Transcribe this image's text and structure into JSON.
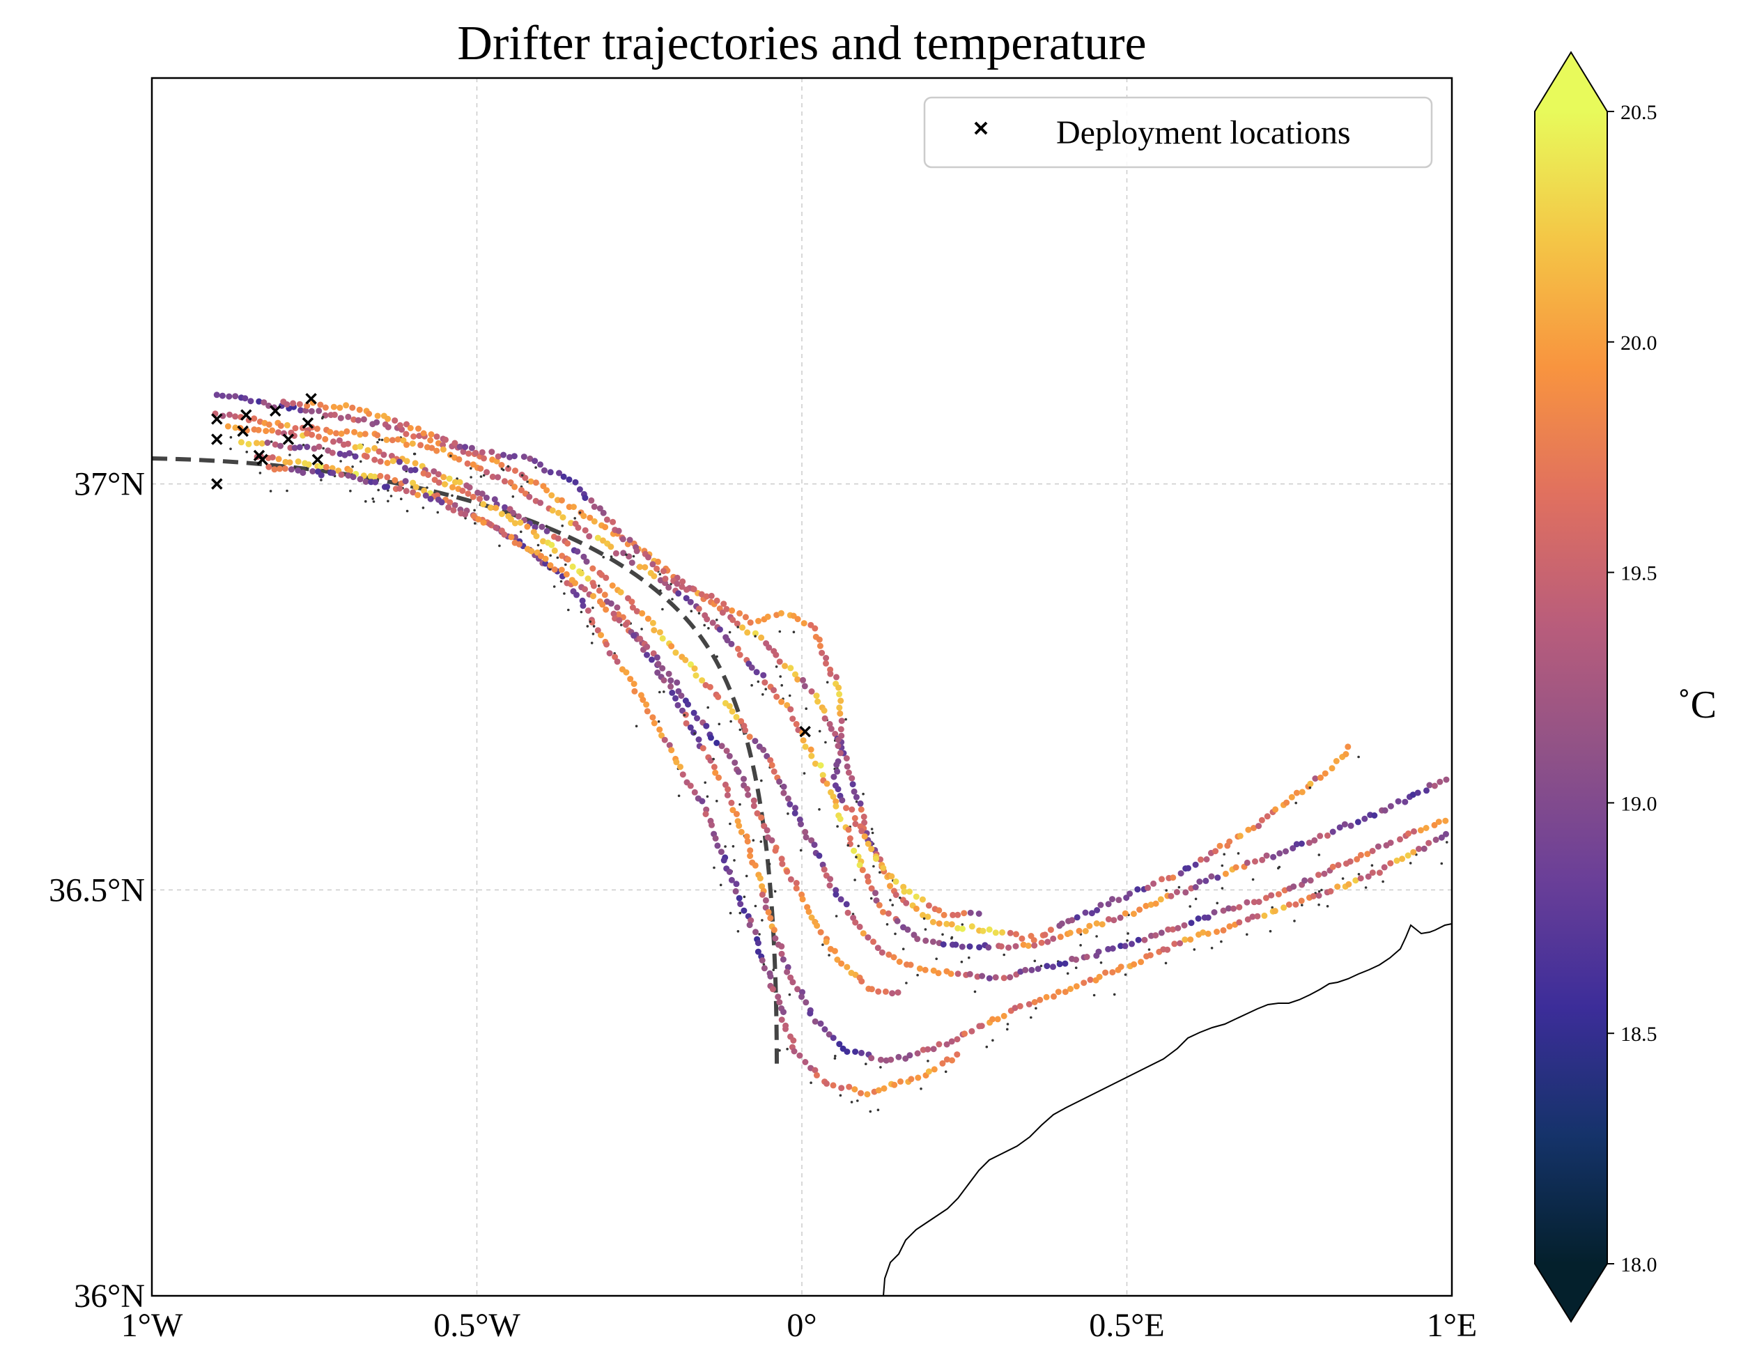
{
  "chart_data": {
    "type": "scatter",
    "title": "Drifter trajectories and temperature",
    "xlim": [
      -1.0,
      1.0
    ],
    "ylim": [
      36.0,
      37.5
    ],
    "x_ticks": [
      {
        "value": -1.0,
        "label": "1°W"
      },
      {
        "value": -0.5,
        "label": "0.5°W"
      },
      {
        "value": 0.0,
        "label": "0°"
      },
      {
        "value": 0.5,
        "label": "0.5°E"
      },
      {
        "value": 1.0,
        "label": "1°E"
      }
    ],
    "y_ticks": [
      {
        "value": 36.0,
        "label": "36°N"
      },
      {
        "value": 36.5,
        "label": "36.5°N"
      },
      {
        "value": 37.0,
        "label": "37°N"
      }
    ],
    "grid": true,
    "legend": {
      "placement": "top-right",
      "entries": [
        {
          "marker": "x",
          "label": "Deployment locations"
        }
      ]
    },
    "colorbar": {
      "label": "˚C",
      "min": 18.0,
      "max": 20.5,
      "ticks": [
        "18.0",
        "18.5",
        "19.0",
        "19.5",
        "20.0",
        "20.5"
      ],
      "colormap": "thermal",
      "extend": "both",
      "colors": [
        "#04202c",
        "#15336a",
        "#3c2d99",
        "#6a3f98",
        "#905287",
        "#b95d7b",
        "#e0705f",
        "#f8943f",
        "#f4c646",
        "#e8fa5b"
      ]
    },
    "deployment_locations": [
      [
        -0.9,
        37.08
      ],
      [
        -0.9,
        37.055
      ],
      [
        -0.9,
        37.0
      ],
      [
        -0.86,
        37.065
      ],
      [
        -0.855,
        37.085
      ],
      [
        -0.81,
        37.09
      ],
      [
        -0.79,
        37.055
      ],
      [
        -0.835,
        37.035
      ],
      [
        -0.83,
        37.03
      ],
      [
        -0.76,
        37.075
      ],
      [
        -0.755,
        37.105
      ],
      [
        -0.745,
        37.03
      ],
      [
        0.005,
        36.695
      ]
    ],
    "trajectory_waypoints": [
      [
        [
          -0.9,
          37.11
        ],
        [
          -0.8,
          37.095
        ],
        [
          -0.68,
          37.08
        ],
        [
          -0.55,
          37.05
        ],
        [
          -0.45,
          37.02
        ],
        [
          -0.35,
          36.97
        ],
        [
          -0.25,
          36.92
        ],
        [
          -0.15,
          36.86
        ],
        [
          -0.05,
          36.8
        ],
        [
          0.02,
          36.74
        ],
        [
          0.07,
          36.66
        ],
        [
          0.1,
          36.57
        ],
        [
          0.14,
          36.5
        ],
        [
          0.2,
          36.46
        ],
        [
          0.28,
          36.45
        ],
        [
          0.36,
          36.44
        ],
        [
          0.46,
          36.48
        ],
        [
          0.58,
          36.52
        ],
        [
          0.7,
          36.58
        ],
        [
          0.8,
          36.64
        ],
        [
          0.85,
          36.68
        ]
      ],
      [
        [
          -0.9,
          37.085
        ],
        [
          -0.78,
          37.07
        ],
        [
          -0.66,
          37.06
        ],
        [
          -0.55,
          37.04
        ],
        [
          -0.45,
          37.0
        ],
        [
          -0.35,
          36.95
        ],
        [
          -0.25,
          36.9
        ],
        [
          -0.15,
          36.84
        ],
        [
          -0.08,
          36.78
        ],
        [
          -0.02,
          36.72
        ],
        [
          0.04,
          36.63
        ],
        [
          0.08,
          36.55
        ],
        [
          0.12,
          36.48
        ],
        [
          0.18,
          36.44
        ],
        [
          0.26,
          36.43
        ],
        [
          0.36,
          36.43
        ],
        [
          0.5,
          36.47
        ],
        [
          0.65,
          36.52
        ],
        [
          0.78,
          36.56
        ],
        [
          0.9,
          36.6
        ],
        [
          1.0,
          36.64
        ]
      ],
      [
        [
          -0.88,
          37.07
        ],
        [
          -0.76,
          37.06
        ],
        [
          -0.65,
          37.04
        ],
        [
          -0.55,
          37.01
        ],
        [
          -0.45,
          36.97
        ],
        [
          -0.35,
          36.92
        ],
        [
          -0.27,
          36.86
        ],
        [
          -0.2,
          36.8
        ],
        [
          -0.12,
          36.73
        ],
        [
          -0.05,
          36.66
        ],
        [
          0.0,
          36.58
        ],
        [
          0.05,
          36.5
        ],
        [
          0.1,
          36.44
        ],
        [
          0.15,
          36.41
        ],
        [
          0.2,
          36.4
        ],
        [
          0.3,
          36.39
        ],
        [
          0.45,
          36.42
        ],
        [
          0.6,
          36.46
        ],
        [
          0.75,
          36.5
        ],
        [
          0.88,
          36.55
        ],
        [
          1.0,
          36.59
        ]
      ],
      [
        [
          -0.86,
          37.05
        ],
        [
          -0.75,
          37.045
        ],
        [
          -0.62,
          37.025
        ],
        [
          -0.52,
          36.99
        ],
        [
          -0.43,
          36.95
        ],
        [
          -0.35,
          36.9
        ],
        [
          -0.28,
          36.84
        ],
        [
          -0.22,
          36.77
        ],
        [
          -0.17,
          36.7
        ],
        [
          -0.12,
          36.63
        ],
        [
          -0.08,
          36.55
        ],
        [
          -0.05,
          36.47
        ],
        [
          -0.02,
          36.4
        ],
        [
          0.02,
          36.34
        ],
        [
          0.07,
          36.3
        ],
        [
          0.14,
          36.29
        ],
        [
          0.22,
          36.31
        ],
        [
          0.32,
          36.35
        ],
        [
          0.45,
          36.39
        ],
        [
          0.6,
          36.44
        ],
        [
          0.75,
          36.48
        ],
        [
          0.88,
          36.52
        ],
        [
          1.0,
          36.57
        ]
      ],
      [
        [
          -0.84,
          37.035
        ],
        [
          -0.72,
          37.02
        ],
        [
          -0.6,
          37.0
        ],
        [
          -0.5,
          36.96
        ],
        [
          -0.42,
          36.92
        ],
        [
          -0.35,
          36.87
        ],
        [
          -0.3,
          36.8
        ],
        [
          -0.25,
          36.74
        ],
        [
          -0.2,
          36.67
        ],
        [
          -0.15,
          36.6
        ],
        [
          -0.11,
          36.52
        ],
        [
          -0.07,
          36.44
        ],
        [
          -0.04,
          36.37
        ],
        [
          -0.01,
          36.3
        ],
        [
          0.04,
          36.26
        ],
        [
          0.1,
          36.25
        ],
        [
          0.18,
          36.27
        ],
        [
          0.25,
          36.3
        ]
      ],
      [
        [
          -0.82,
          37.02
        ],
        [
          -0.7,
          37.01
        ],
        [
          -0.58,
          36.985
        ],
        [
          -0.48,
          36.95
        ],
        [
          -0.4,
          36.91
        ],
        [
          -0.32,
          36.86
        ],
        [
          -0.25,
          36.81
        ],
        [
          -0.2,
          36.76
        ],
        [
          -0.15,
          36.7
        ],
        [
          -0.1,
          36.65
        ],
        [
          -0.06,
          36.58
        ],
        [
          -0.02,
          36.52
        ],
        [
          0.02,
          36.46
        ],
        [
          0.06,
          36.41
        ],
        [
          0.1,
          36.38
        ],
        [
          0.16,
          36.37
        ]
      ],
      [
        [
          -0.8,
          37.1
        ],
        [
          -0.7,
          37.095
        ],
        [
          -0.6,
          37.07
        ],
        [
          -0.5,
          37.04
        ],
        [
          -0.42,
          37.03
        ],
        [
          -0.35,
          37.0
        ],
        [
          -0.28,
          36.94
        ],
        [
          -0.2,
          36.88
        ],
        [
          -0.14,
          36.86
        ],
        [
          -0.08,
          36.83
        ],
        [
          -0.02,
          36.84
        ],
        [
          0.02,
          36.82
        ],
        [
          0.04,
          36.78
        ],
        [
          0.06,
          36.74
        ],
        [
          0.06,
          36.69
        ],
        [
          0.05,
          36.63
        ],
        [
          0.08,
          36.59
        ],
        [
          0.12,
          36.53
        ],
        [
          0.16,
          36.5
        ],
        [
          0.22,
          36.47
        ],
        [
          0.28,
          36.47
        ]
      ]
    ],
    "sample_temperatures": [
      19.0,
      18.7,
      19.2,
      19.4,
      19.6,
      19.9,
      20.0,
      19.8,
      19.5,
      20.2,
      19.3,
      18.9,
      19.6,
      20.1,
      20.3,
      19.7,
      19.1,
      18.8,
      19.5,
      19.9,
      20.0,
      19.4
    ]
  }
}
